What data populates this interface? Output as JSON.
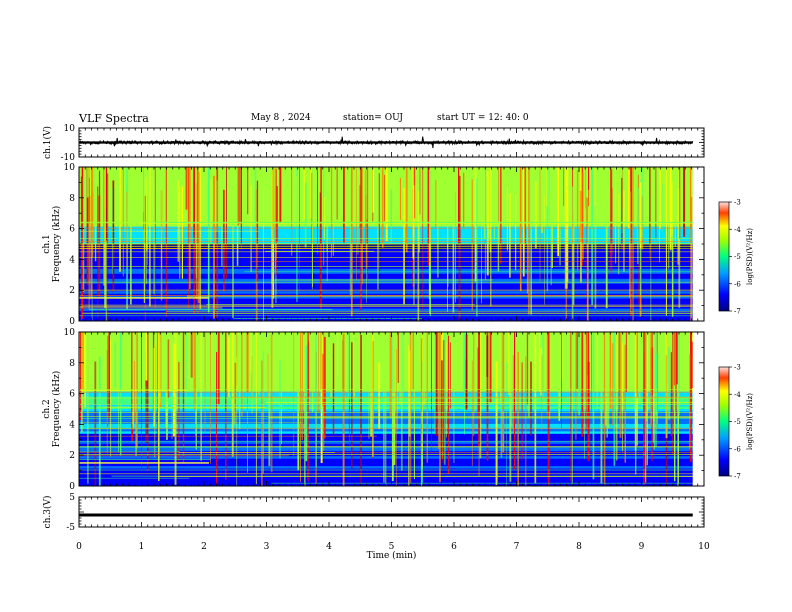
{
  "header": {
    "title": "VLF Spectra",
    "date": "May 8 , 2024",
    "station": "station= OUJ",
    "start_ut": "start UT = 12: 40: 0"
  },
  "chart_data": [
    {
      "type": "line",
      "panel": "ch1-waveform",
      "ylabel": "ch.1(V)",
      "ylim": [
        -10,
        10
      ],
      "yticks": [
        "10",
        "-10"
      ],
      "xlim": [
        0,
        10
      ],
      "description_values": {
        "baseline": 0.0
      }
    },
    {
      "type": "heatmap",
      "panel": "ch1-spectrogram",
      "ylabel": "ch.1\nFrequency (kHz)",
      "ylabel_lines": [
        "ch.1",
        "Frequency (kHz)"
      ],
      "ylim": [
        0,
        10
      ],
      "yticks": [
        "0",
        "2",
        "4",
        "6",
        "8",
        "10"
      ],
      "xlim": [
        0,
        10
      ],
      "colorbar": {
        "label": "log(PSD)(V²/Hz)",
        "range": [
          -7,
          -3
        ],
        "ticks": [
          "-3",
          "-4",
          "-5",
          "-6",
          "-7"
        ]
      }
    },
    {
      "type": "heatmap",
      "panel": "ch2-spectrogram",
      "ylabel": "ch.2\nFrequency (kHz)",
      "ylabel_lines": [
        "ch.2",
        "Frequency (kHz)"
      ],
      "ylim": [
        0,
        10
      ],
      "yticks": [
        "0",
        "2",
        "4",
        "6",
        "8",
        "10"
      ],
      "xlim": [
        0,
        10
      ],
      "colorbar": {
        "label": "log(PSD)(V²/Hz)",
        "range": [
          -7,
          -3
        ],
        "ticks": [
          "-3",
          "-4",
          "-5",
          "-6",
          "-7"
        ]
      }
    },
    {
      "type": "line",
      "panel": "ch3-waveform",
      "ylabel": "ch.3(V)",
      "ylim": [
        -5,
        5
      ],
      "yticks": [
        "5",
        "-5"
      ],
      "xlim": [
        0,
        10
      ],
      "values_constant": -1.0
    }
  ],
  "x_axis": {
    "label": "Time (min)",
    "ticks": [
      "0",
      "1",
      "2",
      "3",
      "4",
      "5",
      "6",
      "7",
      "8",
      "9",
      "10"
    ],
    "range": [
      0,
      10
    ],
    "data_end": 9.82
  },
  "colors": {
    "colormap": [
      "#00008b",
      "#0000ff",
      "#0070ff",
      "#00e0ff",
      "#40ff80",
      "#a0ff30",
      "#ffff00",
      "#ff8000",
      "#ff0000",
      "#c00000"
    ],
    "trace": "#000000"
  }
}
